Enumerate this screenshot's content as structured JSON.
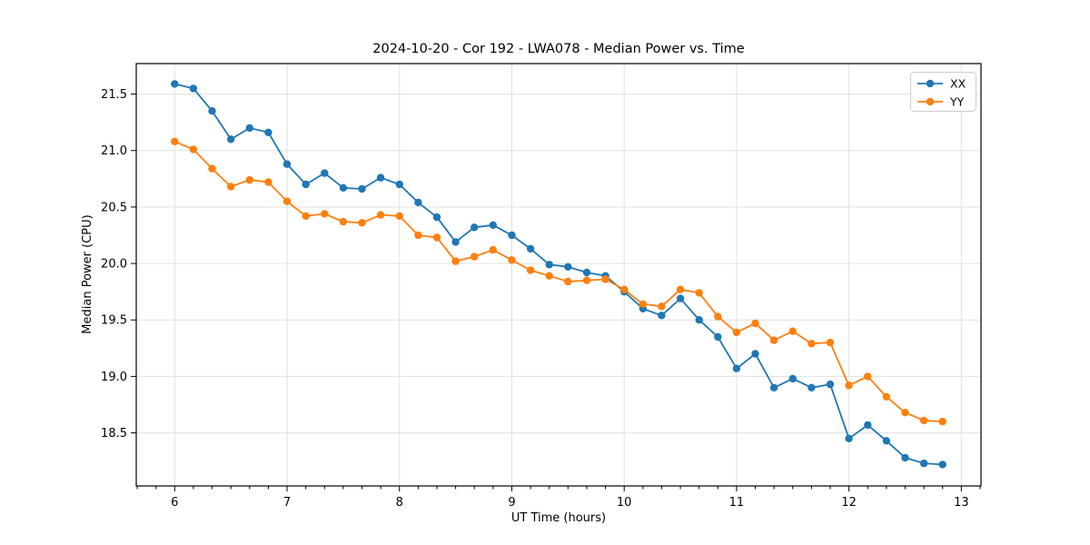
{
  "chart_data": {
    "type": "line",
    "title": "2024-10-20 - Cor 192 - LWA078 - Median Power vs. Time",
    "xlabel": "UT Time (hours)",
    "ylabel": "Median Power (CPU)",
    "xlim": [
      5.658,
      13.175
    ],
    "ylim": [
      18.03,
      21.77
    ],
    "grid": true,
    "legend_position": "upper right",
    "x_minor_tick_interval": 0.166667,
    "xticks": {
      "values": [
        6,
        7,
        8,
        9,
        10,
        11,
        12,
        13
      ],
      "labels": [
        "6",
        "7",
        "8",
        "9",
        "10",
        "11",
        "12",
        "13"
      ]
    },
    "yticks": {
      "values": [
        18.5,
        19.0,
        19.5,
        20.0,
        20.5,
        21.0,
        21.5
      ],
      "labels": [
        "18.5",
        "19.0",
        "19.5",
        "20.0",
        "20.5",
        "21.0",
        "21.5"
      ]
    },
    "x": [
      6.0,
      6.1667,
      6.3333,
      6.5,
      6.6667,
      6.8333,
      7.0,
      7.1667,
      7.3333,
      7.5,
      7.6667,
      7.8333,
      8.0,
      8.1667,
      8.3333,
      8.5,
      8.6667,
      8.8333,
      9.0,
      9.1667,
      9.3333,
      9.5,
      9.6667,
      9.8333,
      10.0,
      10.1667,
      10.3333,
      10.5,
      10.6667,
      10.8333,
      11.0,
      11.1667,
      11.3333,
      11.5,
      11.6667,
      11.8333,
      12.0,
      12.1667,
      12.3333,
      12.5,
      12.6667,
      12.8333
    ],
    "series": [
      {
        "name": "XX",
        "color": "#1f77b4",
        "marker": "circle",
        "values": [
          21.59,
          21.55,
          21.35,
          21.1,
          21.2,
          21.16,
          20.88,
          20.7,
          20.8,
          20.67,
          20.66,
          20.76,
          20.7,
          20.54,
          20.41,
          20.19,
          20.32,
          20.34,
          20.25,
          20.13,
          19.99,
          19.97,
          19.92,
          19.89,
          19.75,
          19.6,
          19.54,
          19.69,
          19.5,
          19.35,
          19.07,
          19.2,
          18.9,
          18.98,
          18.9,
          18.93,
          18.45,
          18.57,
          18.43,
          18.28,
          18.23,
          18.22
        ]
      },
      {
        "name": "YY",
        "color": "#ff7f0e",
        "marker": "circle",
        "values": [
          21.08,
          21.01,
          20.84,
          20.68,
          20.74,
          20.72,
          20.55,
          20.42,
          20.44,
          20.37,
          20.36,
          20.43,
          20.42,
          20.25,
          20.23,
          20.02,
          20.06,
          20.12,
          20.03,
          19.94,
          19.89,
          19.84,
          19.85,
          19.86,
          19.77,
          19.64,
          19.62,
          19.77,
          19.74,
          19.53,
          19.39,
          19.47,
          19.32,
          19.4,
          19.29,
          19.3,
          18.92,
          19.0,
          18.82,
          18.68,
          18.61,
          18.6
        ]
      }
    ]
  }
}
